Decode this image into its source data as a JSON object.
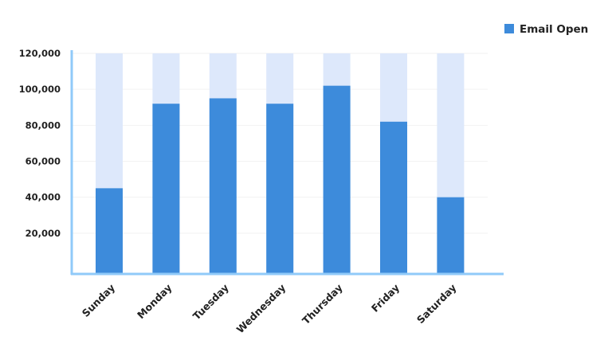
{
  "chart_data": {
    "type": "bar",
    "title": "",
    "xlabel": "",
    "ylabel": "",
    "categories": [
      "Sunday",
      "Monday",
      "Tuesday",
      "Wednesday",
      "Thursday",
      "Friday",
      "Saturday"
    ],
    "series": [
      {
        "name": "Email Open",
        "values": [
          45000,
          92000,
          95000,
          92000,
          102000,
          82000,
          40000
        ],
        "color": "#3d8bdb"
      }
    ],
    "background_bar_value": 120000,
    "background_bar_color": "#dde8fb",
    "ylim": [
      0,
      120000
    ],
    "yticks": [
      "20,000",
      "40,000",
      "60,000",
      "80,000",
      "100,000",
      "120,000"
    ],
    "ytick_values": [
      20000,
      40000,
      60000,
      80000,
      100000,
      120000
    ],
    "grid": true,
    "axis_color": "#90caf9",
    "legend_position": "top-right"
  }
}
